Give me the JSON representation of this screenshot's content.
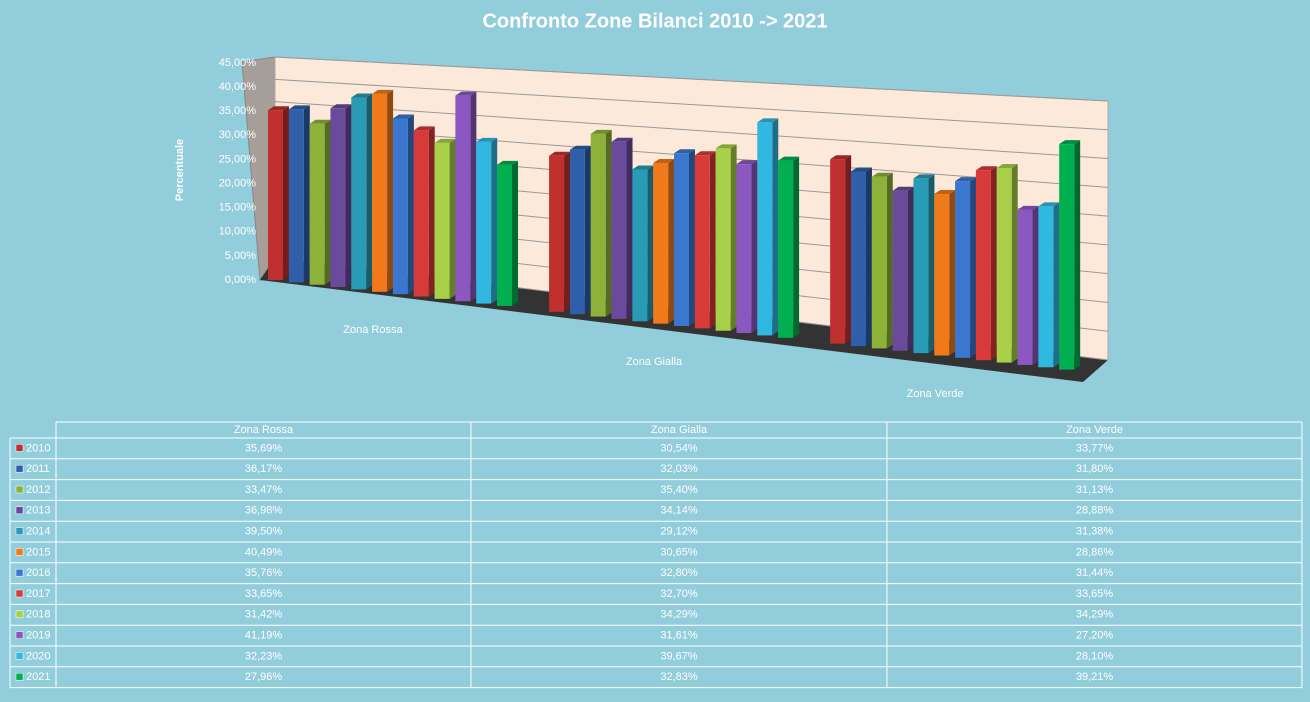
{
  "chart_data": {
    "type": "bar3d",
    "title": "Confronto Zone Bilanci 2010 -> 2021",
    "y_label": "Percentuale",
    "categories": [
      "Zona Rossa",
      "Zona Gialla",
      "Zona Verde"
    ],
    "ylim": [
      0,
      45
    ],
    "yticks": [
      {
        "value": 0,
        "label": "0,00%"
      },
      {
        "value": 5,
        "label": "5,00%"
      },
      {
        "value": 10,
        "label": "10,00%"
      },
      {
        "value": 15,
        "label": "15,00%"
      },
      {
        "value": 20,
        "label": "20,00%"
      },
      {
        "value": 25,
        "label": "25,00%"
      },
      {
        "value": 30,
        "label": "30,00%"
      },
      {
        "value": 35,
        "label": "35,00%"
      },
      {
        "value": 40,
        "label": "40,00%"
      },
      {
        "value": 45,
        "label": "45,00%"
      }
    ],
    "grid": true,
    "series": [
      {
        "name": "2010",
        "color": "#c0302e",
        "values": [
          35.69,
          30.54,
          33.77
        ],
        "value_labels": [
          "35,69%",
          "30,54%",
          "33,77%"
        ]
      },
      {
        "name": "2011",
        "color": "#2e5fa8",
        "values": [
          36.17,
          32.03,
          31.8
        ],
        "value_labels": [
          "36,17%",
          "32,03%",
          "31,80%"
        ]
      },
      {
        "name": "2012",
        "color": "#8db23a",
        "values": [
          33.47,
          35.4,
          31.13
        ],
        "value_labels": [
          "33,47%",
          "35,40%",
          "31,13%"
        ]
      },
      {
        "name": "2013",
        "color": "#6a4a9a",
        "values": [
          36.98,
          34.14,
          28.88
        ],
        "value_labels": [
          "36,98%",
          "34,14%",
          "28,88%"
        ]
      },
      {
        "name": "2014",
        "color": "#2a9bb5",
        "values": [
          39.5,
          29.12,
          31.38
        ],
        "value_labels": [
          "39,50%",
          "29,12%",
          "31,38%"
        ]
      },
      {
        "name": "2015",
        "color": "#f07a1a",
        "values": [
          40.49,
          30.65,
          28.86
        ],
        "value_labels": [
          "40,49%",
          "30,65%",
          "28,86%"
        ]
      },
      {
        "name": "2016",
        "color": "#3a78d0",
        "values": [
          35.76,
          32.8,
          31.44
        ],
        "value_labels": [
          "35,76%",
          "32,80%",
          "31,44%"
        ]
      },
      {
        "name": "2017",
        "color": "#d83a3a",
        "values": [
          33.65,
          32.7,
          33.65
        ],
        "value_labels": [
          "33,65%",
          "32,70%",
          "33,65%"
        ]
      },
      {
        "name": "2018",
        "color": "#a8d048",
        "values": [
          31.42,
          34.29,
          34.29
        ],
        "value_labels": [
          "31,42%",
          "34,29%",
          "34,29%"
        ]
      },
      {
        "name": "2019",
        "color": "#8a58c0",
        "values": [
          41.19,
          31.61,
          27.2
        ],
        "value_labels": [
          "41,19%",
          "31,61%",
          "27,20%"
        ]
      },
      {
        "name": "2020",
        "color": "#30b8e0",
        "values": [
          32.23,
          39.67,
          28.1
        ],
        "value_labels": [
          "32,23%",
          "39,67%",
          "28,10%"
        ]
      },
      {
        "name": "2021",
        "color": "#00b050",
        "values": [
          27.96,
          32.83,
          39.21
        ],
        "value_labels": [
          "27,96%",
          "32,83%",
          "39,21%"
        ]
      }
    ]
  }
}
